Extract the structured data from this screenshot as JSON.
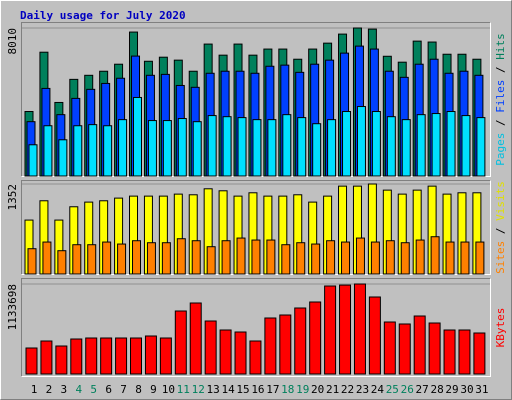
{
  "chart_data": {
    "type": "bar",
    "title": "Daily usage for July 2020",
    "categories": [
      "1",
      "2",
      "3",
      "4",
      "5",
      "6",
      "7",
      "8",
      "9",
      "10",
      "11",
      "12",
      "13",
      "14",
      "15",
      "16",
      "17",
      "18",
      "19",
      "20",
      "21",
      "22",
      "23",
      "24",
      "25",
      "26",
      "27",
      "28",
      "29",
      "30",
      "31"
    ],
    "category_colors": [
      "#000000",
      "#000000",
      "#000000",
      "#00805c",
      "#00805c",
      "#000000",
      "#000000",
      "#000000",
      "#000000",
      "#000000",
      "#00805c",
      "#00805c",
      "#000000",
      "#000000",
      "#000000",
      "#000000",
      "#000000",
      "#00805c",
      "#00805c",
      "#000000",
      "#000000",
      "#000000",
      "#000000",
      "#000000",
      "#00805c",
      "#00805c",
      "#000000",
      "#000000",
      "#000000",
      "#000000",
      "#000000"
    ],
    "legend_separator": " / ",
    "panels": [
      {
        "ylim": [
          0,
          8010
        ],
        "yticks": [
          8010
        ],
        "series": [
          {
            "name": "Hits",
            "color": "#00805c",
            "label_color": "#00805c",
            "values": [
              3490,
              6700,
              3980,
              5230,
              5450,
              5670,
              6050,
              7790,
              6210,
              6430,
              6270,
              5670,
              7140,
              6540,
              7140,
              6540,
              6870,
              6870,
              6320,
              6870,
              7190,
              7680,
              8010,
              7950,
              6480,
              6160,
              7300,
              7250,
              6590,
              6590,
              6320
            ]
          },
          {
            "name": "Files",
            "color": "#0040ff",
            "label_color": "#0040ff",
            "values": [
              2940,
              4740,
              3320,
              4200,
              4690,
              5010,
              5290,
              6490,
              5450,
              5500,
              4900,
              4800,
              5560,
              5670,
              5670,
              5560,
              5940,
              6000,
              5610,
              6050,
              6270,
              6650,
              7030,
              6870,
              5670,
              5340,
              6050,
              6320,
              5560,
              5670,
              5450
            ]
          },
          {
            "name": "Pages",
            "color": "#00e0ff",
            "label_color": "#00c0e0",
            "values": [
              1690,
              2720,
              1960,
              2720,
              2780,
              2720,
              3050,
              4250,
              3000,
              3000,
              3110,
              2940,
              3270,
              3210,
              3160,
              3050,
              3050,
              3320,
              3160,
              2830,
              3050,
              3490,
              3760,
              3490,
              3210,
              3050,
              3320,
              3380,
              3490,
              3270,
              3160
            ]
          }
        ]
      },
      {
        "ylim": [
          0,
          1352
        ],
        "yticks": [
          1352
        ],
        "series": [
          {
            "name": "Visits",
            "color": "#ffff00",
            "label_color": "#e0e000",
            "values": [
              810,
              1100,
              810,
              1010,
              1080,
              1100,
              1140,
              1170,
              1170,
              1170,
              1200,
              1190,
              1280,
              1250,
              1170,
              1220,
              1170,
              1170,
              1190,
              1080,
              1170,
              1320,
              1320,
              1352,
              1260,
              1200,
              1260,
              1320,
              1200,
              1220,
              1220
            ]
          },
          {
            "name": "Sites",
            "color": "#ff8000",
            "label_color": "#ff8000",
            "values": [
              380,
              480,
              350,
              440,
              440,
              480,
              450,
              500,
              470,
              470,
              530,
              500,
              410,
              500,
              540,
              510,
              510,
              440,
              470,
              450,
              500,
              480,
              540,
              480,
              500,
              470,
              510,
              560,
              480,
              480,
              480
            ]
          }
        ]
      },
      {
        "ylim": [
          0,
          1133698
        ],
        "yticks": [
          1133698
        ],
        "series": [
          {
            "name": "KBytes",
            "color": "#ff0000",
            "label_color": "#ff0000",
            "values": [
              327500,
              415700,
              352700,
              440900,
              453500,
              453500,
              453500,
              453500,
              478700,
              453500,
              793600,
              894400,
              667600,
              554300,
              529000,
              415700,
              705400,
              743200,
              831400,
              907000,
              1108500,
              1120000,
              1133698,
              970000,
              655000,
              630000,
              730600,
              642400,
              554300,
              554300,
              516500
            ]
          }
        ]
      }
    ]
  }
}
